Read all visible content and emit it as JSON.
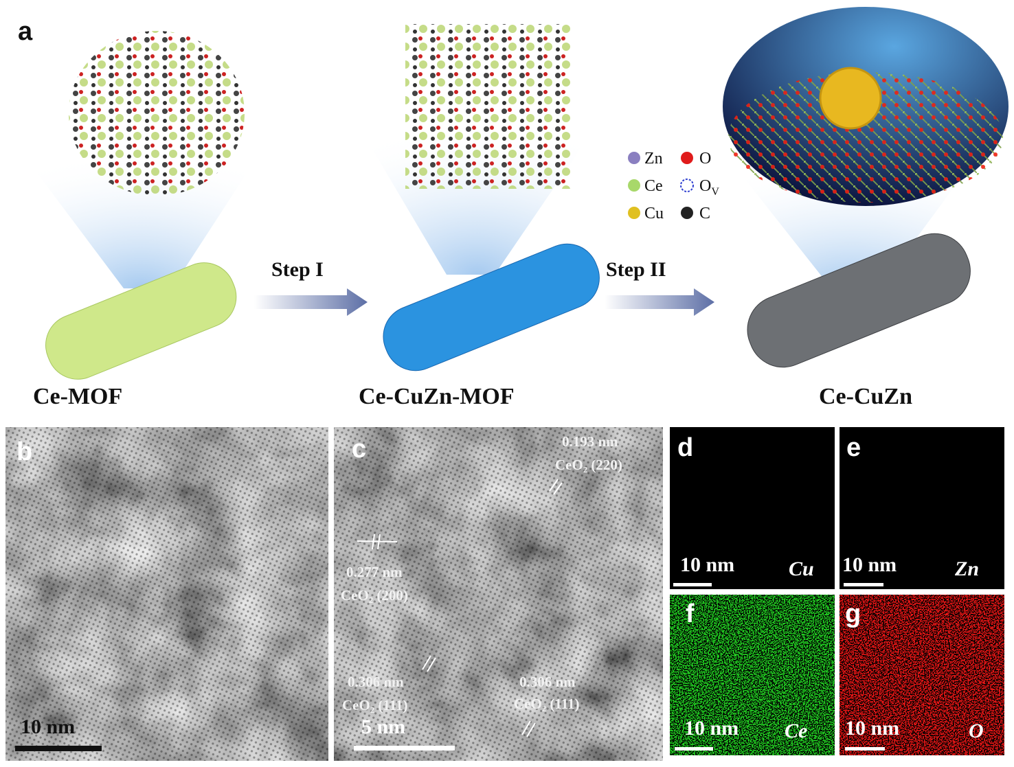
{
  "panel_a": {
    "label": "a",
    "structures": [
      "Ce-MOF",
      "Ce-CuZn-MOF",
      "Ce-CuZn"
    ],
    "steps": [
      "Step I",
      "Step II"
    ],
    "legend": [
      "Zn",
      "O",
      "Ce",
      {
        "base": "O",
        "sub": "V"
      },
      "Cu",
      "C"
    ]
  },
  "panel_b": {
    "label": "b",
    "scale_bar": "10 nm"
  },
  "panel_c": {
    "label": "c",
    "scale_bar": "5 nm",
    "annotations": [
      {
        "spacing": "0.193 nm",
        "plane": "CeO₂ (220)"
      },
      {
        "spacing": "0.277 nm",
        "plane": "CeO₂ (200)"
      },
      {
        "spacing": "0.306 nm",
        "plane": "CeO₂ (111)"
      },
      {
        "spacing": "0.306 nm",
        "plane": "CeO₂ (111)"
      }
    ]
  },
  "panel_d": {
    "label": "d",
    "scale_bar": "10 nm",
    "element": "Cu"
  },
  "panel_e": {
    "label": "e",
    "scale_bar": "10 nm",
    "element": "Zn"
  },
  "panel_f": {
    "label": "f",
    "scale_bar": "10 nm",
    "element": "Ce"
  },
  "panel_g": {
    "label": "g",
    "scale_bar": "10 nm",
    "element": "O"
  }
}
